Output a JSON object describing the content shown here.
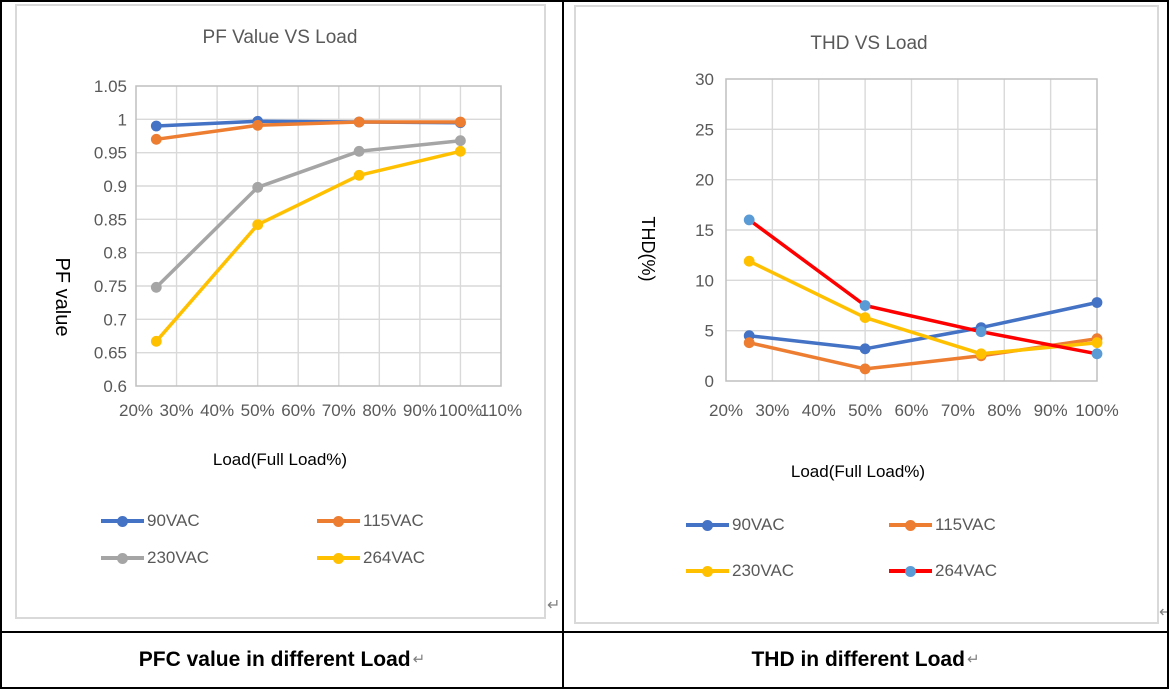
{
  "captions": [
    {
      "text": "PFC value in different Load",
      "return_mark": "↵"
    },
    {
      "text": "THD in different Load",
      "return_mark": "↵"
    }
  ],
  "frame_return_mark": "↵",
  "colors": {
    "grid": "#d9d9d9",
    "plot_border": "#bfbfbf",
    "tick_label": "#595959",
    "chart_title": "#595959",
    "axis_title": "#000000",
    "legend_label": "#595959",
    "caption_text": "#000000",
    "return_mark": "#7f7f7f",
    "table_border": "#000000",
    "series_blue": "#4472C4",
    "series_orange": "#ED7D31",
    "series_gray": "#A5A5A5",
    "series_yellow": "#FFC000",
    "series_red": "#FF0000",
    "series_lightblue_marker": "#5B9BD5"
  },
  "chart_data": [
    {
      "type": "line",
      "title": "PF Value VS Load",
      "xlabel": "Load(Full Load%)",
      "ylabel": "PF value",
      "grid": true,
      "legend_position": "bottom",
      "x": [
        25,
        50,
        75,
        100
      ],
      "x_axis": {
        "min": 20,
        "max": 110,
        "tick_labels": [
          "20%",
          "30%",
          "40%",
          "50%",
          "60%",
          "70%",
          "80%",
          "90%",
          "100%",
          "110%"
        ]
      },
      "y_axis": {
        "min": 0.6,
        "max": 1.05,
        "tick_labels": [
          "0.6",
          "0.65",
          "0.7",
          "0.75",
          "0.8",
          "0.85",
          "0.9",
          "0.95",
          "1",
          "1.05"
        ]
      },
      "series": [
        {
          "name": "90VAC",
          "color": "#4472C4",
          "values": [
            0.99,
            0.997,
            0.996,
            0.995
          ]
        },
        {
          "name": "115VAC",
          "color": "#ED7D31",
          "values": [
            0.97,
            0.991,
            0.996,
            0.996
          ]
        },
        {
          "name": "230VAC",
          "color": "#A5A5A5",
          "values": [
            0.748,
            0.898,
            0.952,
            0.968
          ]
        },
        {
          "name": "264VAC",
          "color": "#FFC000",
          "values": [
            0.667,
            0.842,
            0.916,
            0.952
          ]
        }
      ]
    },
    {
      "type": "line",
      "title": "THD VS Load",
      "xlabel": "Load(Full Load%)",
      "ylabel": "THD(%)",
      "grid": true,
      "legend_position": "bottom",
      "x": [
        25,
        50,
        75,
        100
      ],
      "x_axis": {
        "min": 20,
        "max": 100,
        "tick_labels": [
          "20%",
          "30%",
          "40%",
          "50%",
          "60%",
          "70%",
          "80%",
          "90%",
          "100%"
        ]
      },
      "y_axis": {
        "min": 0,
        "max": 30,
        "tick_labels": [
          "0",
          "5",
          "10",
          "15",
          "20",
          "25",
          "30"
        ]
      },
      "series": [
        {
          "name": "90VAC",
          "color": "#4472C4",
          "values": [
            4.5,
            3.2,
            5.3,
            7.8
          ]
        },
        {
          "name": "115VAC",
          "color": "#ED7D31",
          "values": [
            3.8,
            1.2,
            2.5,
            4.2
          ]
        },
        {
          "name": "230VAC",
          "color": "#FFC000",
          "values": [
            11.9,
            6.3,
            2.7,
            3.8
          ]
        },
        {
          "name": "264VAC",
          "color": "#FF0000",
          "marker_color": "#5B9BD5",
          "values": [
            16,
            7.5,
            4.9,
            2.7
          ]
        }
      ]
    }
  ]
}
